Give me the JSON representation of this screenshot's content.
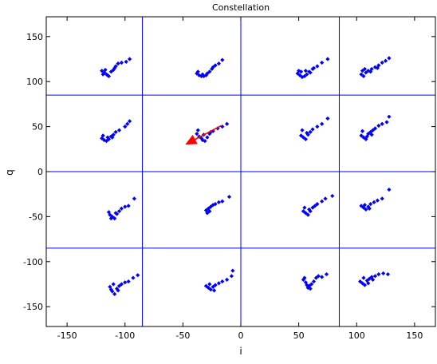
{
  "chart_data": {
    "type": "scatter",
    "title": "Constellation",
    "xlabel": "i",
    "ylabel": "q",
    "xlim": [
      -168,
      168
    ],
    "ylim": [
      -172,
      172
    ],
    "x_ticks": [
      -150,
      -100,
      -50,
      0,
      50,
      100,
      150
    ],
    "y_ticks": [
      -150,
      -100,
      -50,
      0,
      50,
      100,
      150
    ],
    "grid": false,
    "decision_boundaries": {
      "vertical": [
        -85,
        0,
        85
      ],
      "horizontal": [
        -85,
        0,
        85
      ]
    },
    "colors": {
      "points": "#0000ff",
      "boundaries": "#0000ff",
      "arrow": "#ff0000"
    },
    "annotation": {
      "type": "arrow",
      "from": [
        -17,
        51
      ],
      "to": [
        -48,
        30
      ]
    },
    "series": [
      {
        "points": [
          [
            -120,
            112
          ],
          [
            -118,
            110
          ],
          [
            -116,
            108
          ],
          [
            -114,
            106
          ],
          [
            -117,
            113
          ],
          [
            -112,
            111
          ],
          [
            -110,
            113
          ],
          [
            -108,
            117
          ],
          [
            -106,
            120
          ],
          [
            -103,
            121
          ],
          [
            -99,
            122
          ],
          [
            -96,
            125
          ],
          [
            -119,
            108
          ],
          [
            -115,
            107
          ],
          [
            -109,
            115
          ],
          [
            -38,
            109
          ],
          [
            -36,
            107
          ],
          [
            -34,
            106
          ],
          [
            -32,
            106
          ],
          [
            -29,
            109
          ],
          [
            -27,
            111
          ],
          [
            -25,
            114
          ],
          [
            -22,
            118
          ],
          [
            -19,
            120
          ],
          [
            -16,
            124
          ],
          [
            -37,
            111
          ],
          [
            -33,
            108
          ],
          [
            -30,
            107
          ],
          [
            -24,
            116
          ],
          [
            49,
            109
          ],
          [
            51,
            107
          ],
          [
            53,
            105
          ],
          [
            55,
            106
          ],
          [
            57,
            108
          ],
          [
            60,
            110
          ],
          [
            63,
            115
          ],
          [
            66,
            117
          ],
          [
            70,
            121
          ],
          [
            75,
            125
          ],
          [
            52,
            111
          ],
          [
            56,
            112
          ],
          [
            59,
            111
          ],
          [
            62,
            114
          ],
          [
            50,
            112
          ],
          [
            104,
            108
          ],
          [
            106,
            106
          ],
          [
            108,
            110
          ],
          [
            110,
            112
          ],
          [
            113,
            114
          ],
          [
            116,
            116
          ],
          [
            119,
            118
          ],
          [
            122,
            121
          ],
          [
            125,
            123
          ],
          [
            128,
            126
          ],
          [
            105,
            112
          ],
          [
            107,
            114
          ],
          [
            112,
            111
          ],
          [
            118,
            115
          ],
          [
            -120,
            37
          ],
          [
            -118,
            35
          ],
          [
            -116,
            34
          ],
          [
            -114,
            36
          ],
          [
            -112,
            39
          ],
          [
            -110,
            41
          ],
          [
            -108,
            44
          ],
          [
            -105,
            46
          ],
          [
            -100,
            50
          ],
          [
            -98,
            53
          ],
          [
            -96,
            56
          ],
          [
            -119,
            40
          ],
          [
            -115,
            38
          ],
          [
            -111,
            38
          ],
          [
            -38,
            42
          ],
          [
            -36,
            39
          ],
          [
            -34,
            37
          ],
          [
            -33,
            35
          ],
          [
            -31,
            34
          ],
          [
            -29,
            38
          ],
          [
            -27,
            42
          ],
          [
            -24,
            45
          ],
          [
            -20,
            48
          ],
          [
            -16,
            50
          ],
          [
            -12,
            53
          ],
          [
            -37,
            46
          ],
          [
            -32,
            41
          ],
          [
            -26,
            44
          ],
          [
            52,
            40
          ],
          [
            54,
            38
          ],
          [
            56,
            36
          ],
          [
            58,
            41
          ],
          [
            60,
            44
          ],
          [
            62,
            47
          ],
          [
            66,
            50
          ],
          [
            70,
            53
          ],
          [
            75,
            59
          ],
          [
            53,
            46
          ],
          [
            57,
            43
          ],
          [
            104,
            40
          ],
          [
            106,
            38
          ],
          [
            108,
            36
          ],
          [
            110,
            42
          ],
          [
            112,
            44
          ],
          [
            114,
            46
          ],
          [
            116,
            48
          ],
          [
            119,
            51
          ],
          [
            122,
            53
          ],
          [
            126,
            55
          ],
          [
            128,
            61
          ],
          [
            105,
            45
          ],
          [
            109,
            39
          ],
          [
            113,
            41
          ],
          [
            -114,
            -45
          ],
          [
            -113,
            -48
          ],
          [
            -111,
            -50
          ],
          [
            -109,
            -52
          ],
          [
            -107,
            -47
          ],
          [
            -105,
            -44
          ],
          [
            -103,
            -41
          ],
          [
            -100,
            -39
          ],
          [
            -97,
            -38
          ],
          [
            -92,
            -30
          ],
          [
            -112,
            -52
          ],
          [
            -108,
            -46
          ],
          [
            -30,
            -43
          ],
          [
            -28,
            -41
          ],
          [
            -26,
            -39
          ],
          [
            -24,
            -37
          ],
          [
            -22,
            -36
          ],
          [
            -19,
            -34
          ],
          [
            -16,
            -33
          ],
          [
            -10,
            -28
          ],
          [
            -29,
            -46
          ],
          [
            -27,
            -44
          ],
          [
            54,
            -44
          ],
          [
            56,
            -46
          ],
          [
            58,
            -48
          ],
          [
            60,
            -44
          ],
          [
            62,
            -40
          ],
          [
            64,
            -38
          ],
          [
            66,
            -36
          ],
          [
            70,
            -33
          ],
          [
            73,
            -30
          ],
          [
            79,
            -27
          ],
          [
            55,
            -40
          ],
          [
            59,
            -42
          ],
          [
            104,
            -38
          ],
          [
            106,
            -40
          ],
          [
            108,
            -42
          ],
          [
            110,
            -39
          ],
          [
            112,
            -36
          ],
          [
            115,
            -34
          ],
          [
            118,
            -32
          ],
          [
            122,
            -30
          ],
          [
            128,
            -20
          ],
          [
            107,
            -37
          ],
          [
            111,
            -41
          ],
          [
            -113,
            -128
          ],
          [
            -112,
            -131
          ],
          [
            -111,
            -133
          ],
          [
            -109,
            -136
          ],
          [
            -107,
            -130
          ],
          [
            -105,
            -127
          ],
          [
            -103,
            -125
          ],
          [
            -100,
            -123
          ],
          [
            -97,
            -122
          ],
          [
            -93,
            -118
          ],
          [
            -89,
            -115
          ],
          [
            -110,
            -125
          ],
          [
            -106,
            -132
          ],
          [
            -30,
            -127
          ],
          [
            -28,
            -129
          ],
          [
            -26,
            -131
          ],
          [
            -24,
            -128
          ],
          [
            -22,
            -126
          ],
          [
            -19,
            -124
          ],
          [
            -16,
            -122
          ],
          [
            -12,
            -120
          ],
          [
            -8,
            -116
          ],
          [
            -7,
            -110
          ],
          [
            -27,
            -125
          ],
          [
            -23,
            -132
          ],
          [
            54,
            -120
          ],
          [
            56,
            -123
          ],
          [
            57,
            -126
          ],
          [
            58,
            -129
          ],
          [
            59,
            -127
          ],
          [
            61,
            -125
          ],
          [
            63,
            -122
          ],
          [
            65,
            -118
          ],
          [
            67,
            -116
          ],
          [
            70,
            -117
          ],
          [
            74,
            -114
          ],
          [
            55,
            -118
          ],
          [
            60,
            -130
          ],
          [
            103,
            -122
          ],
          [
            105,
            -124
          ],
          [
            107,
            -126
          ],
          [
            109,
            -121
          ],
          [
            111,
            -119
          ],
          [
            113,
            -117
          ],
          [
            116,
            -116
          ],
          [
            119,
            -114
          ],
          [
            123,
            -113
          ],
          [
            127,
            -114
          ],
          [
            106,
            -118
          ],
          [
            110,
            -124
          ],
          [
            114,
            -120
          ]
        ]
      }
    ]
  }
}
